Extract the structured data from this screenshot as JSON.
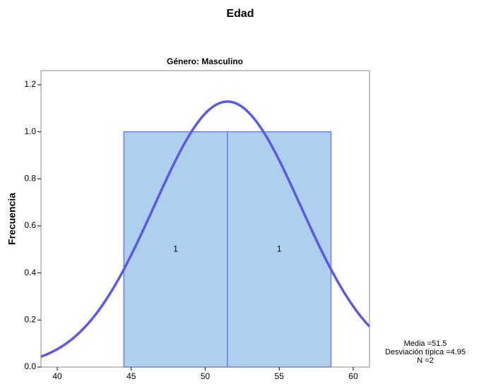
{
  "chart_data": {
    "type": "histogram",
    "title": "Edad",
    "subtitle": "Género: Masculino",
    "ylabel": "Frecuencia",
    "bins": [
      44.5,
      51.5,
      58.5
    ],
    "values": [
      1,
      1
    ],
    "color": "#aecfee",
    "edge_color": "#6f7ff0",
    "curve_color": "#5a5ae8",
    "xlim": [
      38.9,
      61.1
    ],
    "xticks": [
      40,
      45,
      50,
      55,
      60
    ],
    "ylim": [
      0,
      1.26
    ],
    "yticks": [
      {
        "value": 0,
        "label": "0.0"
      },
      {
        "value": 0.2,
        "label": "0.2"
      },
      {
        "value": 0.4,
        "label": "0.4"
      },
      {
        "value": 0.6,
        "label": "0.6"
      },
      {
        "value": 0.8,
        "label": "0.8"
      },
      {
        "value": 1,
        "label": "1.0"
      },
      {
        "value": 1.2,
        "label": "1.2"
      }
    ],
    "stats": {
      "mean": {
        "label": "Media =",
        "value": 51.5
      },
      "sd": {
        "label": "Desviación típica =",
        "value": 4.95
      },
      "n": {
        "label": "N =",
        "value": 2
      }
    }
  }
}
